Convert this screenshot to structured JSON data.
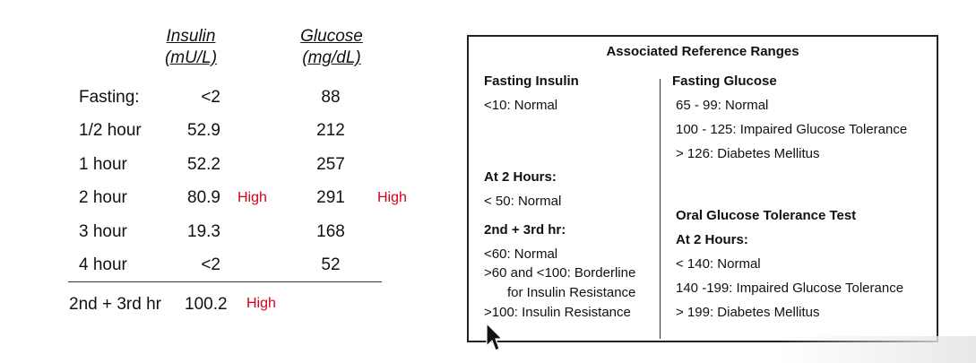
{
  "results_table": {
    "headers": {
      "insulin": [
        "Insulin",
        "(mU/L)"
      ],
      "glucose": [
        "Glucose",
        "(mg/dL)"
      ]
    },
    "rows": [
      {
        "label": "Fasting:",
        "insulin": "<2",
        "insulin_flag": "",
        "glucose": "88",
        "glucose_flag": ""
      },
      {
        "label": "1/2 hour",
        "insulin": "52.9",
        "insulin_flag": "",
        "glucose": "212",
        "glucose_flag": ""
      },
      {
        "label": "1 hour",
        "insulin": "52.2",
        "insulin_flag": "",
        "glucose": "257",
        "glucose_flag": ""
      },
      {
        "label": "2 hour",
        "insulin": "80.9",
        "insulin_flag": "High",
        "glucose": "291",
        "glucose_flag": "High"
      },
      {
        "label": "3 hour",
        "insulin": "19.3",
        "insulin_flag": "",
        "glucose": "168",
        "glucose_flag": ""
      },
      {
        "label": "4 hour",
        "insulin": "<2",
        "insulin_flag": "",
        "glucose": "52",
        "glucose_flag": ""
      }
    ],
    "summary": {
      "label": "2nd + 3rd hr",
      "insulin": "100.2",
      "insulin_flag": "High"
    }
  },
  "reference_ranges": {
    "title": "Associated Reference Ranges",
    "fasting_insulin": {
      "heading": "Fasting Insulin",
      "lines": [
        "<10: Normal"
      ]
    },
    "at_2_hours_insulin": {
      "heading": "At 2 Hours:",
      "lines": [
        "< 50: Normal"
      ]
    },
    "second_third_hr": {
      "heading": "2nd + 3rd hr:",
      "lines": [
        "<60: Normal",
        ">60 and <100: Borderline",
        "for Insulin Resistance",
        ">100: Insulin Resistance"
      ]
    },
    "fasting_glucose": {
      "heading": "Fasting Glucose",
      "lines": [
        "65 - 99: Normal",
        "100 - 125: Impaired Glucose Tolerance",
        "> 126: Diabetes Mellitus"
      ]
    },
    "ogtt": {
      "heading": "Oral Glucose Tolerance Test",
      "subheading": "At 2 Hours:",
      "lines": [
        "< 140: Normal",
        "140 -199: Impaired Glucose Tolerance",
        "> 199: Diabetes Mellitus"
      ]
    }
  },
  "colors": {
    "flag": "#d0021b",
    "text": "#111111",
    "border": "#222222"
  }
}
